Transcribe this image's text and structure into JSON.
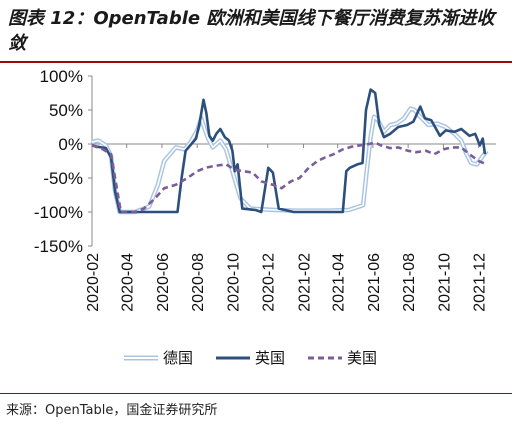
{
  "title": "图表 12：OpenTable 欧洲和美国线下餐厅消费复苏渐进收敛",
  "source": "来源：OpenTable，国金证券研究所",
  "colors": {
    "germany": "#a9c4e2",
    "uk": "#2c4f7c",
    "us": "#7b5d9a",
    "rule": "#9b0a0a"
  },
  "chart_data": {
    "type": "line",
    "title": "",
    "xlabel": "",
    "ylabel": "",
    "ylim": [
      -150,
      100
    ],
    "yticks": [
      100,
      50,
      0,
      -50,
      -100,
      -150
    ],
    "ytick_labels": [
      "100%",
      "50%",
      "0%",
      "-50%",
      "-100%",
      "-150%"
    ],
    "xlim": [
      "2020-02-01",
      "2021-12-31"
    ],
    "xticks": [
      "2020-02-01",
      "2020-04-01",
      "2020-06-01",
      "2020-08-01",
      "2020-10-01",
      "2020-12-01",
      "2021-02-01",
      "2021-04-01",
      "2021-06-01",
      "2021-08-01",
      "2021-10-01",
      "2021-12-01"
    ],
    "xtick_labels": [
      "2020-02",
      "2020-04",
      "2020-06",
      "2020-08",
      "2020-10",
      "2020-12",
      "2021-02",
      "2021-04",
      "2021-06",
      "2021-08",
      "2021-10",
      "2021-12"
    ],
    "legend_position": "bottom",
    "series": [
      {
        "name": "德国",
        "style": "double-line",
        "points": [
          [
            "2020-02-01",
            3
          ],
          [
            "2020-02-12",
            5
          ],
          [
            "2020-02-25",
            -2
          ],
          [
            "2020-03-05",
            -18
          ],
          [
            "2020-03-12",
            -70
          ],
          [
            "2020-03-20",
            -100
          ],
          [
            "2020-04-15",
            -100
          ],
          [
            "2020-05-10",
            -92
          ],
          [
            "2020-05-25",
            -60
          ],
          [
            "2020-06-05",
            -25
          ],
          [
            "2020-06-25",
            -5
          ],
          [
            "2020-07-10",
            -8
          ],
          [
            "2020-07-20",
            2
          ],
          [
            "2020-08-01",
            20
          ],
          [
            "2020-08-08",
            38
          ],
          [
            "2020-08-14",
            22
          ],
          [
            "2020-08-20",
            8
          ],
          [
            "2020-08-28",
            -5
          ],
          [
            "2020-09-10",
            5
          ],
          [
            "2020-09-20",
            -8
          ],
          [
            "2020-10-01",
            -40
          ],
          [
            "2020-10-15",
            -80
          ],
          [
            "2020-11-01",
            -95
          ],
          [
            "2020-11-20",
            -96
          ],
          [
            "2020-12-15",
            -97
          ],
          [
            "2021-01-15",
            -98
          ],
          [
            "2021-02-15",
            -98
          ],
          [
            "2021-03-20",
            -98
          ],
          [
            "2021-04-20",
            -97
          ],
          [
            "2021-05-15",
            -90
          ],
          [
            "2021-05-22",
            -35
          ],
          [
            "2021-05-28",
            10
          ],
          [
            "2021-06-03",
            40
          ],
          [
            "2021-06-10",
            35
          ],
          [
            "2021-06-20",
            18
          ],
          [
            "2021-07-01",
            28
          ],
          [
            "2021-07-12",
            30
          ],
          [
            "2021-07-25",
            38
          ],
          [
            "2021-08-05",
            52
          ],
          [
            "2021-08-12",
            50
          ],
          [
            "2021-08-22",
            40
          ],
          [
            "2021-09-05",
            28
          ],
          [
            "2021-09-20",
            30
          ],
          [
            "2021-10-05",
            25
          ],
          [
            "2021-10-20",
            15
          ],
          [
            "2021-11-01",
            5
          ],
          [
            "2021-11-10",
            -15
          ],
          [
            "2021-11-18",
            -28
          ],
          [
            "2021-11-28",
            -30
          ],
          [
            "2021-12-08",
            -18
          ],
          [
            "2021-12-15",
            -10
          ]
        ]
      },
      {
        "name": "英国",
        "style": "solid",
        "points": [
          [
            "2020-02-01",
            -2
          ],
          [
            "2020-02-10",
            -4
          ],
          [
            "2020-02-25",
            -6
          ],
          [
            "2020-03-05",
            -20
          ],
          [
            "2020-03-12",
            -70
          ],
          [
            "2020-03-20",
            -100
          ],
          [
            "2020-04-15",
            -100
          ],
          [
            "2020-05-15",
            -100
          ],
          [
            "2020-06-15",
            -100
          ],
          [
            "2020-06-28",
            -100
          ],
          [
            "2020-07-05",
            -50
          ],
          [
            "2020-07-12",
            -10
          ],
          [
            "2020-07-22",
            0
          ],
          [
            "2020-07-30",
            8
          ],
          [
            "2020-08-05",
            30
          ],
          [
            "2020-08-12",
            65
          ],
          [
            "2020-08-17",
            45
          ],
          [
            "2020-08-22",
            12
          ],
          [
            "2020-08-28",
            5
          ],
          [
            "2020-09-03",
            15
          ],
          [
            "2020-09-10",
            22
          ],
          [
            "2020-09-18",
            10
          ],
          [
            "2020-09-25",
            5
          ],
          [
            "2020-10-01",
            -10
          ],
          [
            "2020-10-05",
            -40
          ],
          [
            "2020-10-10",
            -30
          ],
          [
            "2020-10-18",
            -95
          ],
          [
            "2020-11-10",
            -97
          ],
          [
            "2020-11-20",
            -100
          ],
          [
            "2020-12-02",
            -35
          ],
          [
            "2020-12-10",
            -42
          ],
          [
            "2020-12-20",
            -95
          ],
          [
            "2021-01-15",
            -100
          ],
          [
            "2021-02-15",
            -100
          ],
          [
            "2021-03-15",
            -100
          ],
          [
            "2021-04-10",
            -100
          ],
          [
            "2021-04-16",
            -40
          ],
          [
            "2021-04-22",
            -35
          ],
          [
            "2021-05-05",
            -30
          ],
          [
            "2021-05-14",
            -28
          ],
          [
            "2021-05-20",
            50
          ],
          [
            "2021-05-28",
            80
          ],
          [
            "2021-06-05",
            75
          ],
          [
            "2021-06-12",
            28
          ],
          [
            "2021-06-20",
            10
          ],
          [
            "2021-07-01",
            15
          ],
          [
            "2021-07-15",
            25
          ],
          [
            "2021-07-30",
            28
          ],
          [
            "2021-08-10",
            33
          ],
          [
            "2021-08-22",
            55
          ],
          [
            "2021-08-30",
            38
          ],
          [
            "2021-09-10",
            35
          ],
          [
            "2021-09-25",
            12
          ],
          [
            "2021-10-05",
            20
          ],
          [
            "2021-10-20",
            18
          ],
          [
            "2021-11-01",
            22
          ],
          [
            "2021-11-15",
            12
          ],
          [
            "2021-11-25",
            15
          ],
          [
            "2021-12-03",
            -2
          ],
          [
            "2021-12-08",
            8
          ],
          [
            "2021-12-12",
            -15
          ]
        ]
      },
      {
        "name": "美国",
        "style": "dashed",
        "points": [
          [
            "2020-02-01",
            -2
          ],
          [
            "2020-02-20",
            -8
          ],
          [
            "2020-03-05",
            -15
          ],
          [
            "2020-03-12",
            -50
          ],
          [
            "2020-03-22",
            -100
          ],
          [
            "2020-04-15",
            -100
          ],
          [
            "2020-05-01",
            -95
          ],
          [
            "2020-05-20",
            -80
          ],
          [
            "2020-06-05",
            -65
          ],
          [
            "2020-06-25",
            -60
          ],
          [
            "2020-07-15",
            -50
          ],
          [
            "2020-08-01",
            -40
          ],
          [
            "2020-08-15",
            -35
          ],
          [
            "2020-09-01",
            -32
          ],
          [
            "2020-09-20",
            -30
          ],
          [
            "2020-10-05",
            -38
          ],
          [
            "2020-10-20",
            -40
          ],
          [
            "2020-11-05",
            -42
          ],
          [
            "2020-11-20",
            -55
          ],
          [
            "2020-12-10",
            -60
          ],
          [
            "2020-12-25",
            -65
          ],
          [
            "2021-01-10",
            -55
          ],
          [
            "2021-01-25",
            -50
          ],
          [
            "2021-02-10",
            -35
          ],
          [
            "2021-02-25",
            -25
          ],
          [
            "2021-03-10",
            -20
          ],
          [
            "2021-03-25",
            -15
          ],
          [
            "2021-04-10",
            -8
          ],
          [
            "2021-04-25",
            -4
          ],
          [
            "2021-05-10",
            -2
          ],
          [
            "2021-05-25",
            0
          ],
          [
            "2021-06-05",
            2
          ],
          [
            "2021-06-15",
            -2
          ],
          [
            "2021-07-01",
            -6
          ],
          [
            "2021-07-15",
            -5
          ],
          [
            "2021-08-01",
            -10
          ],
          [
            "2021-08-15",
            -12
          ],
          [
            "2021-09-01",
            -10
          ],
          [
            "2021-09-15",
            -15
          ],
          [
            "2021-10-01",
            -8
          ],
          [
            "2021-10-15",
            -5
          ],
          [
            "2021-11-01",
            -5
          ],
          [
            "2021-11-15",
            -15
          ],
          [
            "2021-12-01",
            -25
          ],
          [
            "2021-12-15",
            -30
          ]
        ]
      }
    ]
  }
}
